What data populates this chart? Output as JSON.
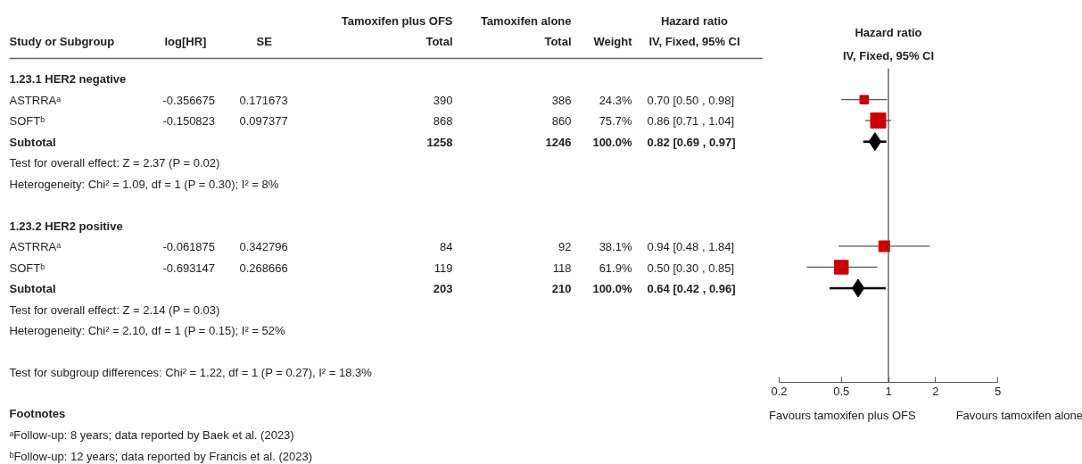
{
  "chart_data": [
    {
      "type": "other",
      "ylabel": "Study or Subgroup",
      "categories": [
        "log[HR]",
        "SE",
        "Tamoxifen plus OFS\nTotal",
        "Tamoxifen alone\nTotal",
        "Weight",
        "Hazard ratio\nIV, Fixed, 95% CI"
      ],
      "y_categories": [
        "1.23.1 HER2 negative",
        "ASTRRAᵃ",
        "SOFTᵇ",
        "Subtotal",
        "Test for overall effect: Z = 2.37 (P = 0.02)",
        "Heterogeneity: Chi² = 1.09, df = 1 (P = 0.30); I² = 8%",
        null,
        "1.23.2 HER2 positive",
        "ASTRRAᵃ",
        "SOFTᵇ",
        "Subtotal",
        "Test for overall effect: Z = 2.14 (P = 0.03)",
        "Heterogeneity: Chi² = 2.10, df = 1 (P = 0.15); I² = 52%",
        null,
        "Test for subgroup differences: Chi² = 1.22, df = 1 (P = 0.27), I² = 18.3%"
      ],
      "cell_labels": [
        [
          null,
          null,
          null,
          null,
          null,
          null
        ],
        [
          "-0.356675",
          "0.171673",
          "390",
          "386",
          "24.3%",
          "0.70 [0.50 , 0.98]"
        ],
        [
          "-0.150823",
          "0.097377",
          "868",
          "860",
          "75.7%",
          "0.86 [0.71 , 1.04]"
        ],
        [
          null,
          null,
          "1258",
          "1246",
          "100.0%",
          "0.82 [0.69 , 0.97]"
        ],
        [
          null,
          null,
          null,
          null,
          null,
          null
        ],
        [
          null,
          null,
          null,
          null,
          null,
          null
        ],
        [
          null,
          null,
          null,
          null,
          null,
          null
        ],
        [
          null,
          null,
          null,
          null,
          null,
          null
        ],
        [
          "-0.061875",
          "0.342796",
          "84",
          "92",
          "38.1%",
          "0.94 [0.48 , 1.84]"
        ],
        [
          "-0.693147",
          "0.268666",
          "119",
          "118",
          "61.9%",
          "0.50 [0.30 , 0.85]"
        ],
        [
          null,
          null,
          "203",
          "210",
          "100.0%",
          "0.64 [0.42 , 0.96]"
        ],
        [
          null,
          null,
          null,
          null,
          null,
          null
        ],
        [
          null,
          null,
          null,
          null,
          null,
          null
        ],
        [
          null,
          null,
          null,
          null,
          null,
          null
        ],
        [
          null,
          null,
          null,
          null,
          null,
          null
        ]
      ],
      "annotations": [
        "Footnotes",
        "ᵃFollow-up: 8 years; data reported by Baek et al. (2023)",
        "ᵇFollow-up: 12 years; data reported by Francis et al. (2023)"
      ]
    },
    {
      "type": "scatter",
      "title": "Hazard ratio",
      "subtitle": "IV, Fixed, 95% CI",
      "categories": [
        null,
        null,
        null,
        null,
        null,
        null,
        null,
        null,
        null,
        null,
        null,
        null,
        null,
        null,
        null
      ],
      "orientation": "horizontal",
      "log": "x",
      "xlim": [
        0.2,
        5
      ],
      "xticks": [
        0.2,
        0.5,
        1,
        2,
        5
      ],
      "tick_labels": "x",
      "ref_lines": [
        {
          "axis": "x",
          "value": 1,
          "color": "#444444"
        }
      ],
      "annotations": [
        "Favours tamoxifen plus OFS",
        "Favours tamoxifen alone"
      ],
      "series": [
        {
          "type": "bubble",
          "marker": "square",
          "color": "#cc0000",
          "values": [
            null,
            0.7,
            0.86,
            null,
            null,
            null,
            null,
            null,
            0.94,
            0.5,
            null,
            null,
            null,
            null,
            null
          ],
          "errors": [
            null,
            [
              0.5,
              0.98
            ],
            [
              0.71,
              1.04
            ],
            null,
            null,
            null,
            null,
            null,
            [
              0.48,
              1.84
            ],
            [
              0.3,
              0.85
            ],
            null,
            null,
            null,
            null,
            null
          ],
          "sizes": [
            null,
            0.32,
            1,
            null,
            null,
            null,
            null,
            null,
            0.5,
            0.82,
            null,
            null,
            null,
            null,
            null
          ]
        },
        {
          "type": "scatter",
          "marker": "diamond",
          "color": "#000000",
          "values": [
            null,
            null,
            null,
            0.82,
            null,
            null,
            null,
            null,
            null,
            null,
            0.64,
            null,
            null,
            null,
            null
          ],
          "errors": [
            null,
            null,
            null,
            [
              0.69,
              0.97
            ],
            null,
            null,
            null,
            null,
            null,
            null,
            [
              0.42,
              0.96
            ],
            null,
            null,
            null,
            null
          ]
        }
      ]
    }
  ]
}
